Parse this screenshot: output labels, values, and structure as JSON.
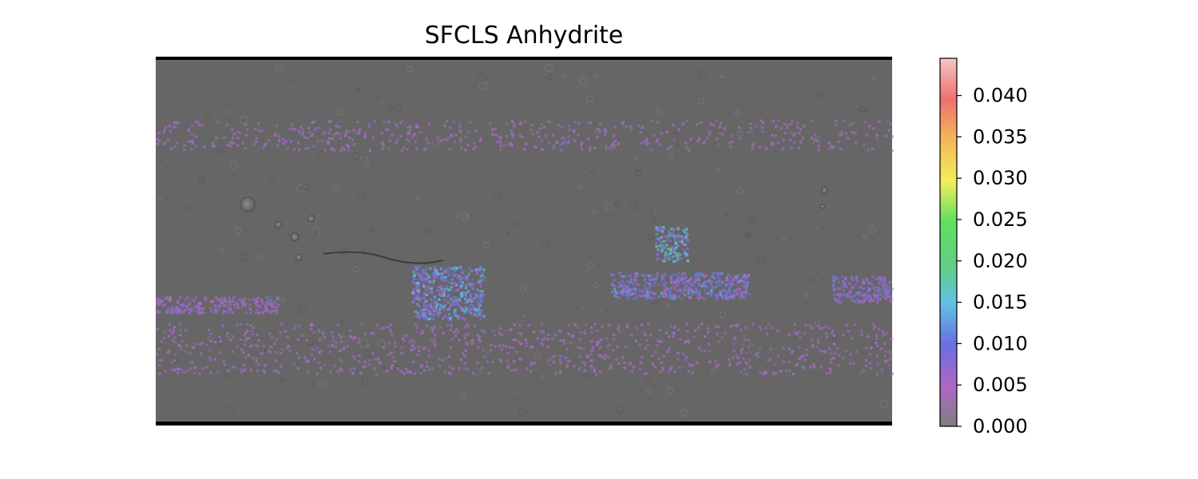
{
  "chart_data": {
    "type": "heatmap",
    "title": "SFCLS Anhydrite",
    "basemap": "shaded-relief-globe-map",
    "map_background_color": "#666666",
    "colorbar": {
      "range": [
        0,
        0.0445
      ],
      "ticks": [
        0.0,
        0.005,
        0.01,
        0.015,
        0.02,
        0.025,
        0.03,
        0.035,
        0.04
      ],
      "tick_labels": [
        "0.000",
        "0.005",
        "0.010",
        "0.015",
        "0.020",
        "0.025",
        "0.030",
        "0.035",
        "0.040"
      ],
      "colormap": "rainbow-semi-transparent",
      "colormap_stops": [
        "#7f7f7f",
        "#b066c8",
        "#6a6ee0",
        "#62c0e6",
        "#62d080",
        "#5fe060",
        "#f4ee58",
        "#f6b658",
        "#f07070",
        "#f3c7c7"
      ]
    },
    "features": [
      {
        "name": "central-high-concentration-patch",
        "lon": [
          64,
          80
        ],
        "lat": [
          -10,
          8
        ],
        "value": 0.013
      },
      {
        "name": "central-broad-band",
        "lon": [
          42,
          110
        ],
        "lat": [
          -28,
          -15
        ],
        "value": 0.009
      },
      {
        "name": "west-central-cluster",
        "lon": [
          -55,
          -20
        ],
        "lat": [
          -38,
          -12
        ],
        "value": 0.011
      },
      {
        "name": "east-band",
        "lon": [
          150,
          180
        ],
        "lat": [
          -30,
          -17
        ],
        "value": 0.008
      },
      {
        "name": "western-low-band",
        "lon": [
          -180,
          -120
        ],
        "lat": [
          -35,
          -27
        ],
        "value": 0.006
      },
      {
        "name": "southern-scatter",
        "lon": [
          -180,
          180
        ],
        "lat": [
          -65,
          -40
        ],
        "value": 0.005
      },
      {
        "name": "northern-scatter",
        "lon": [
          -180,
          180
        ],
        "lat": [
          45,
          60
        ],
        "value": 0.005
      }
    ]
  }
}
